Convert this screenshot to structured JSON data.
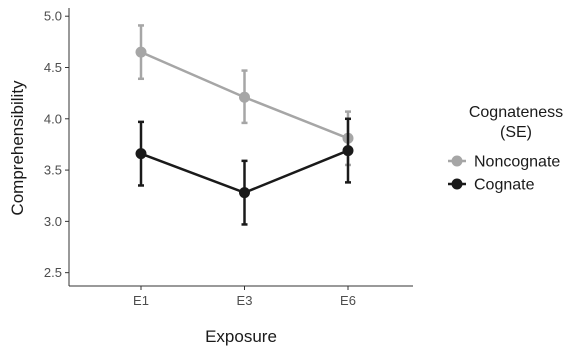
{
  "chart_data": {
    "type": "line",
    "xlabel": "Exposure",
    "ylabel": "Comprehensibility",
    "categories": [
      "E1",
      "E3",
      "E6"
    ],
    "ylim": [
      2.37,
      5.08
    ],
    "yticks": [
      "2.5",
      "3.0",
      "3.5",
      "4.0",
      "4.5",
      "5.0"
    ],
    "grid": false,
    "legend": {
      "position": "right",
      "title_line1": "Cognateness",
      "title_line2": "(SE)"
    },
    "series": [
      {
        "name": "Noncognate",
        "color": "#a6a6a6",
        "values": [
          4.65,
          4.21,
          3.81
        ],
        "err_low": [
          4.39,
          3.96,
          3.55
        ],
        "err_high": [
          4.91,
          4.47,
          4.07
        ]
      },
      {
        "name": "Cognate",
        "color": "#1a1a1a",
        "values": [
          3.66,
          3.28,
          3.69
        ],
        "err_low": [
          3.35,
          2.97,
          3.38
        ],
        "err_high": [
          3.97,
          3.59,
          4.0
        ]
      }
    ]
  }
}
